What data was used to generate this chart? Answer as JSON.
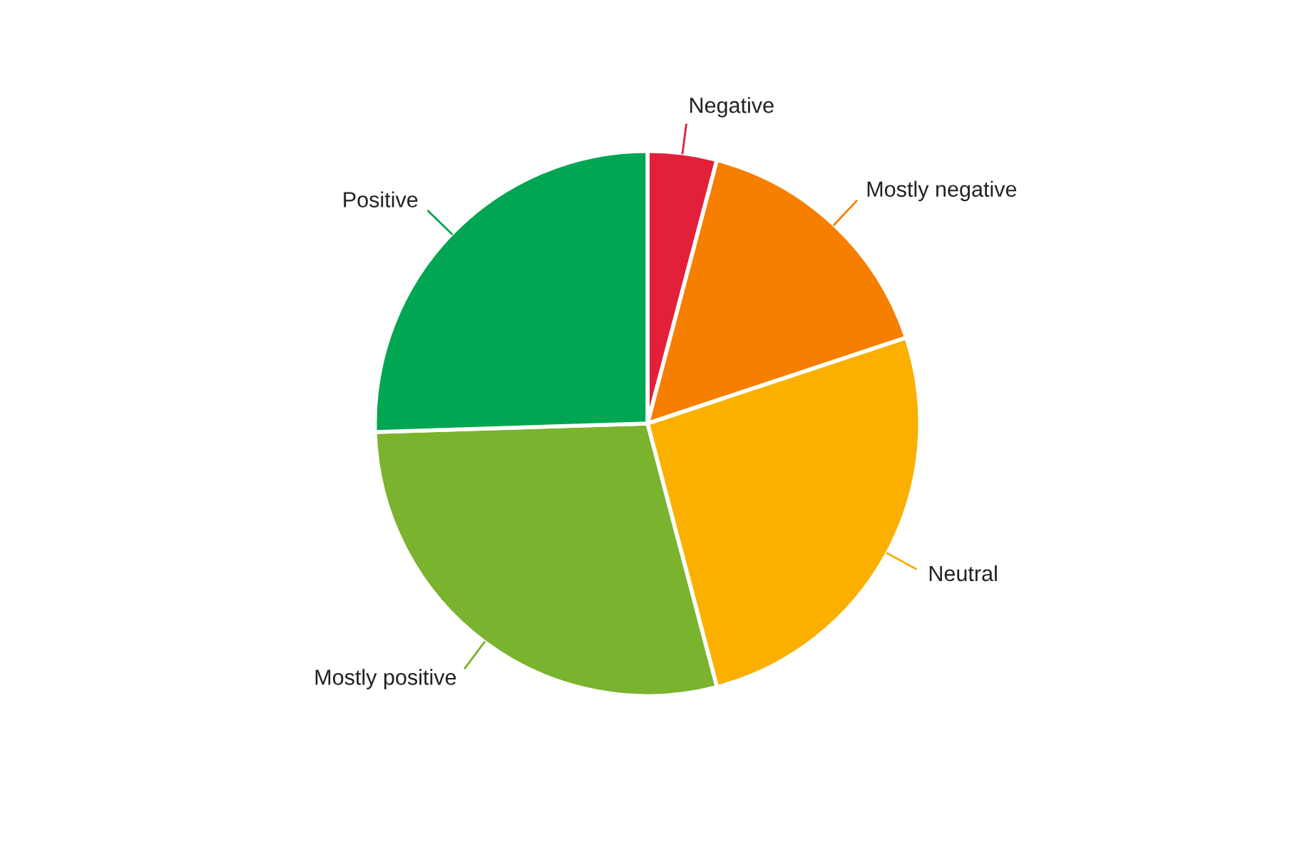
{
  "chart_data": {
    "type": "pie",
    "categories": [
      "Negative",
      "Mostly negative",
      "Neutral",
      "Mostly positive",
      "Positive"
    ],
    "values": [
      4.1,
      15.8,
      26,
      28.6,
      25.5
    ],
    "colors": [
      "#e3203a",
      "#f77f00",
      "#fbb000",
      "#7ab32e",
      "#00a651"
    ],
    "legend": false
  }
}
